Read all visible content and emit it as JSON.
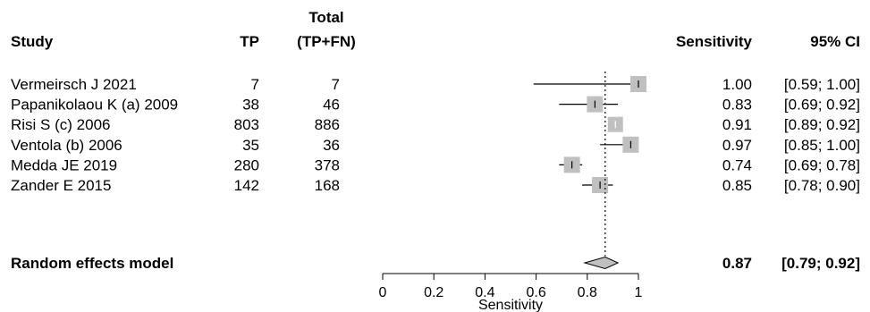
{
  "chart_data": {
    "type": "forest",
    "headers": {
      "study": "Study",
      "tp": "TP",
      "total_line1": "Total",
      "total_line2": "(TP+FN)",
      "sens": "Sensitivity",
      "ci": "95% CI"
    },
    "studies": [
      {
        "name": "Vermeirsch J 2021",
        "tp": "7",
        "total": "7",
        "sens_label": "1.00",
        "ci_label": "[0.59; 1.00]",
        "est": 1.0,
        "lo": 0.59,
        "hi": 1.0
      },
      {
        "name": "Papanikolaou K (a) 2009",
        "tp": "38",
        "total": "46",
        "sens_label": "0.83",
        "ci_label": "[0.69; 0.92]",
        "est": 0.83,
        "lo": 0.69,
        "hi": 0.92
      },
      {
        "name": "Risi S (c) 2006",
        "tp": "803",
        "total": "886",
        "sens_label": "0.91",
        "ci_label": "[0.89; 0.92]",
        "est": 0.91,
        "lo": 0.89,
        "hi": 0.92
      },
      {
        "name": "Ventola (b) 2006",
        "tp": "35",
        "total": "36",
        "sens_label": "0.97",
        "ci_label": "[0.85; 1.00]",
        "est": 0.97,
        "lo": 0.85,
        "hi": 1.0
      },
      {
        "name": "Medda JE 2019",
        "tp": "280",
        "total": "378",
        "sens_label": "0.74",
        "ci_label": "[0.69; 0.78]",
        "est": 0.74,
        "lo": 0.69,
        "hi": 0.78
      },
      {
        "name": "Zander E 2015",
        "tp": "142",
        "total": "168",
        "sens_label": "0.85",
        "ci_label": "[0.78; 0.90]",
        "est": 0.85,
        "lo": 0.78,
        "hi": 0.9
      }
    ],
    "pooled": {
      "name": "Random effects model",
      "sens_label": "0.87",
      "ci_label": "[0.79; 0.92]",
      "est": 0.87,
      "lo": 0.79,
      "hi": 0.92
    },
    "x_axis": {
      "label": "Sensitivity",
      "min": 0,
      "max": 1,
      "ticks": [
        0,
        0.2,
        0.4,
        0.6,
        0.8,
        1
      ],
      "tick_labels": [
        "0",
        "0.2",
        "0.4",
        "0.6",
        "0.8",
        "1"
      ]
    },
    "reference_line": 0.87,
    "colors": {
      "square": "#c0c0c0",
      "diamond": "#c0c0c0",
      "line": "#000000"
    }
  }
}
